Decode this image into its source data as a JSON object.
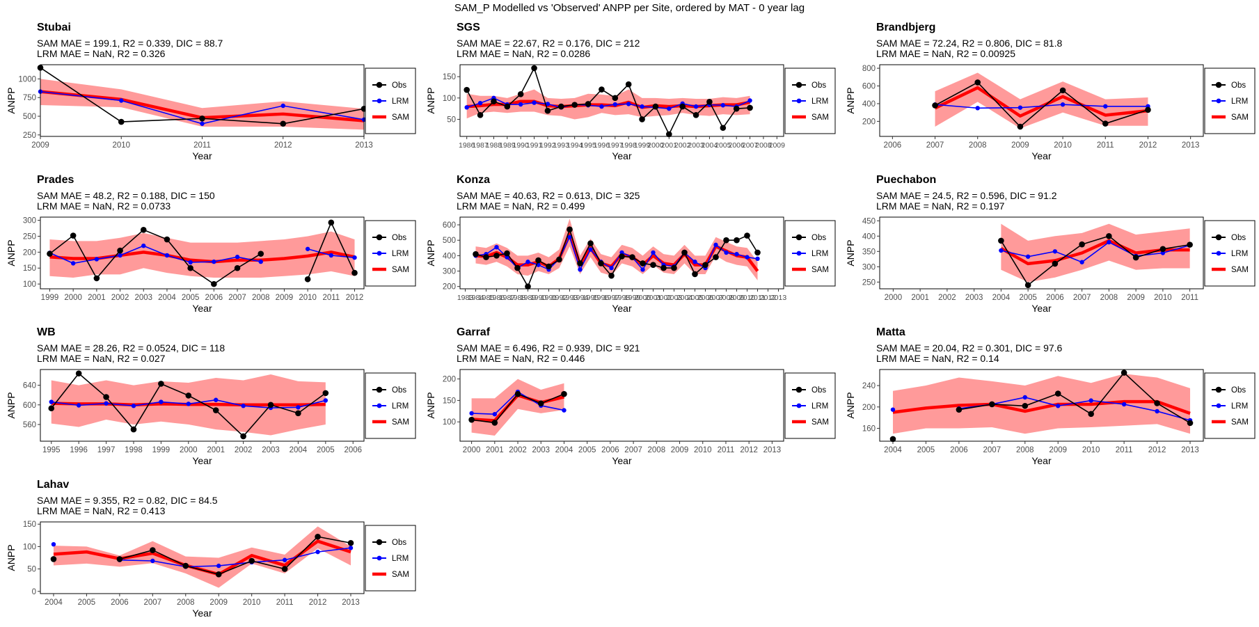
{
  "title": "SAM_P Modelled vs 'Observed' ANPP per Site, ordered by MAT - 0 year lag",
  "colors": {
    "obs": "#000000",
    "lrm": "#0000FF",
    "sam": "#FF0000",
    "band": "#FF9A9A"
  },
  "legend": [
    {
      "key": "obs",
      "label": "Obs"
    },
    {
      "key": "lrm",
      "label": "LRM"
    },
    {
      "key": "sam",
      "label": "SAM"
    }
  ],
  "chart_data": [
    {
      "type": "line",
      "title": "Stubai",
      "stats_sam": "SAM MAE = 199.1, R2 = 0.339, DIC = 88.7",
      "stats_lrm": "LRM MAE = NaN, R2 = 0.326",
      "xlabel": "Year",
      "ylabel": "ANPP",
      "xlim": [
        2009,
        2013
      ],
      "ylim": [
        230,
        1190
      ],
      "xticks": [
        2009,
        2010,
        2011,
        2012,
        2013
      ],
      "yticks": [
        250,
        500,
        750,
        1000
      ],
      "x": [
        2009,
        2010,
        2011,
        2012,
        2013
      ],
      "obs": [
        1150,
        425,
        470,
        400,
        600
      ],
      "lrm": [
        830,
        710,
        400,
        640,
        455
      ],
      "sam": [
        830,
        725,
        480,
        530,
        440
      ],
      "sam_lo": [
        650,
        620,
        360,
        360,
        320
      ],
      "sam_hi": [
        1000,
        860,
        610,
        700,
        600
      ]
    },
    {
      "type": "line",
      "title": "SGS",
      "stats_sam": "SAM MAE = 22.67, R2 = 0.176, DIC = 212",
      "stats_lrm": "LRM MAE = NaN, R2 = 0.0286",
      "xlabel": "Year",
      "ylabel": "ANPP",
      "xlim": [
        1985.5,
        2009.5
      ],
      "ylim": [
        10,
        178
      ],
      "xticks": [
        1986,
        1987,
        1988,
        1989,
        1990,
        1991,
        1992,
        1993,
        1994,
        1995,
        1996,
        1997,
        1998,
        1999,
        2000,
        2001,
        2002,
        2003,
        2004,
        2005,
        2006,
        2007,
        2008,
        2009
      ],
      "yticks": [
        50,
        100,
        150
      ],
      "x": [
        1986,
        1987,
        1988,
        1989,
        1990,
        1991,
        1992,
        1993,
        1994,
        1995,
        1996,
        1997,
        1998,
        1999,
        2000,
        2001,
        2002,
        2003,
        2004,
        2005,
        2006,
        2007
      ],
      "obs": [
        119,
        60,
        92,
        80,
        109,
        170,
        70,
        80,
        84,
        86,
        120,
        100,
        132,
        50,
        80,
        15,
        80,
        60,
        91,
        30,
        75,
        77
      ],
      "lrm": [
        78,
        88,
        100,
        85,
        85,
        89,
        86,
        78,
        85,
        83,
        80,
        85,
        86,
        80,
        78,
        75,
        87,
        80,
        84,
        83,
        80,
        94
      ],
      "sam": [
        80,
        82,
        85,
        85,
        92,
        92,
        82,
        80,
        82,
        84,
        84,
        82,
        90,
        78,
        82,
        80,
        82,
        80,
        82,
        84,
        84,
        90
      ],
      "sam_lo": [
        52,
        65,
        68,
        65,
        68,
        68,
        60,
        58,
        50,
        55,
        65,
        60,
        62,
        55,
        58,
        60,
        65,
        60,
        58,
        62,
        60,
        62
      ],
      "sam_hi": [
        110,
        105,
        105,
        100,
        110,
        120,
        100,
        98,
        100,
        110,
        108,
        105,
        120,
        100,
        100,
        98,
        100,
        98,
        98,
        102,
        100,
        105
      ]
    },
    {
      "type": "line",
      "title": "Brandbjerg",
      "stats_sam": "SAM MAE = 72.24, R2 = 0.806, DIC = 81.8",
      "stats_lrm": "LRM MAE = NaN, R2 = 0.00925",
      "xlabel": "Year",
      "ylabel": "ANPP",
      "xlim": [
        2005.7,
        2013.3
      ],
      "ylim": [
        30,
        840
      ],
      "xticks": [
        2006,
        2007,
        2008,
        2009,
        2010,
        2011,
        2012,
        2013
      ],
      "yticks": [
        200,
        400,
        600,
        800
      ],
      "x": [
        2007,
        2008,
        2009,
        2010,
        2011,
        2012
      ],
      "obs": [
        380,
        640,
        140,
        550,
        175,
        330
      ],
      "lrm": [
        390,
        350,
        355,
        390,
        370,
        370
      ],
      "sam": [
        350,
        580,
        260,
        480,
        270,
        320
      ],
      "sam_lo": [
        140,
        420,
        120,
        300,
        150,
        150
      ],
      "sam_hi": [
        540,
        750,
        450,
        650,
        450,
        470
      ]
    },
    {
      "type": "line",
      "title": "Prades",
      "stats_sam": "SAM MAE = 48.2, R2 = 0.188, DIC = 150",
      "stats_lrm": "LRM MAE = NaN, R2 = 0.0733",
      "xlabel": "Year",
      "ylabel": "ANPP",
      "xlim": [
        1998.6,
        2012.4
      ],
      "ylim": [
        85,
        310
      ],
      "xticks": [
        1999,
        2000,
        2001,
        2002,
        2003,
        2004,
        2005,
        2006,
        2007,
        2008,
        2009,
        2010,
        2011,
        2012
      ],
      "yticks": [
        100,
        150,
        200,
        250,
        300
      ],
      "x": [
        1999,
        2000,
        2001,
        2002,
        2003,
        2004,
        2005,
        2006,
        2007,
        2008,
        2009,
        2010,
        2011,
        2012
      ],
      "obs": [
        195,
        252,
        118,
        205,
        270,
        240,
        150,
        100,
        150,
        195,
        null,
        115,
        293,
        135
      ],
      "lrm": [
        198,
        165,
        178,
        190,
        220,
        190,
        168,
        170,
        185,
        170,
        null,
        210,
        190,
        183
      ],
      "sam": [
        185,
        180,
        180,
        190,
        200,
        190,
        175,
        170,
        175,
        175,
        180,
        188,
        200,
        185
      ],
      "sam_lo": [
        125,
        120,
        130,
        130,
        150,
        135,
        125,
        120,
        120,
        120,
        125,
        130,
        140,
        125
      ],
      "sam_hi": [
        240,
        235,
        235,
        245,
        260,
        245,
        230,
        230,
        230,
        235,
        240,
        250,
        265,
        240
      ]
    },
    {
      "type": "line",
      "title": "Konza",
      "stats_sam": "SAM MAE = 40.63, R2 = 0.613, DIC = 325",
      "stats_lrm": "LRM MAE = NaN, R2 = 0.499",
      "xlabel": "Year",
      "ylabel": "ANPP",
      "xlim": [
        1982.5,
        2013.5
      ],
      "ylim": [
        185,
        650
      ],
      "xticks": [
        1983,
        1984,
        1985,
        1986,
        1987,
        1988,
        1989,
        1990,
        1991,
        1992,
        1993,
        1994,
        1995,
        1996,
        1997,
        1998,
        1999,
        2000,
        2001,
        2002,
        2003,
        2004,
        2005,
        2006,
        2007,
        2008,
        2009,
        2010,
        2011,
        2012,
        2013
      ],
      "yticks": [
        200,
        300,
        400,
        500,
        600
      ],
      "x": [
        1984,
        1985,
        1986,
        1987,
        1988,
        1989,
        1990,
        1991,
        1992,
        1993,
        1994,
        1995,
        1996,
        1997,
        1998,
        1999,
        2000,
        2001,
        2002,
        2003,
        2004,
        2005,
        2006,
        2007,
        2008,
        2009,
        2010,
        2011
      ],
      "obs": [
        410,
        390,
        400,
        415,
        320,
        200,
        370,
        330,
        375,
        570,
        350,
        480,
        350,
        270,
        395,
        390,
        350,
        340,
        320,
        320,
        420,
        280,
        340,
        390,
        500,
        500,
        530,
        420
      ],
      "lrm": [
        400,
        410,
        455,
        390,
        320,
        360,
        340,
        310,
        380,
        520,
        310,
        440,
        360,
        320,
        420,
        390,
        310,
        420,
        340,
        330,
        420,
        360,
        320,
        470,
        420,
        410,
        390,
        380
      ],
      "sam": [
        400,
        395,
        420,
        390,
        340,
        340,
        360,
        330,
        380,
        540,
        340,
        450,
        350,
        330,
        410,
        390,
        340,
        400,
        350,
        340,
        410,
        340,
        340,
        460,
        430,
        400,
        390,
        300
      ],
      "sam_lo": [
        350,
        340,
        360,
        330,
        280,
        270,
        300,
        280,
        320,
        460,
        280,
        390,
        290,
        270,
        350,
        330,
        280,
        340,
        290,
        280,
        350,
        280,
        280,
        400,
        360,
        340,
        330,
        240
      ],
      "sam_hi": [
        460,
        450,
        480,
        450,
        400,
        400,
        420,
        390,
        440,
        640,
        400,
        510,
        410,
        390,
        470,
        450,
        400,
        460,
        410,
        400,
        470,
        400,
        400,
        520,
        490,
        460,
        450,
        360
      ]
    },
    {
      "type": "line",
      "title": "Puechabon",
      "stats_sam": "SAM MAE = 24.5, R2 = 0.596, DIC = 91.2",
      "stats_lrm": "LRM MAE = NaN, R2 = 0.197",
      "xlabel": "Year",
      "ylabel": "ANPP",
      "xlim": [
        1999.5,
        2011.5
      ],
      "ylim": [
        228,
        462
      ],
      "xticks": [
        2000,
        2001,
        2002,
        2003,
        2004,
        2005,
        2006,
        2007,
        2008,
        2009,
        2010,
        2011
      ],
      "yticks": [
        250,
        300,
        350,
        400,
        450
      ],
      "x": [
        2004,
        2005,
        2006,
        2007,
        2008,
        2009,
        2010,
        2011
      ],
      "obs": [
        385,
        240,
        310,
        373,
        400,
        330,
        358,
        372
      ],
      "lrm": [
        353,
        333,
        350,
        315,
        380,
        335,
        345,
        370
      ],
      "sam": [
        360,
        310,
        320,
        345,
        385,
        345,
        355,
        355
      ],
      "sam_lo": [
        290,
        250,
        265,
        290,
        320,
        290,
        295,
        295
      ],
      "sam_hi": [
        440,
        385,
        400,
        410,
        440,
        405,
        415,
        425
      ]
    },
    {
      "type": "line",
      "title": "WB",
      "stats_sam": "SAM MAE = 28.26, R2 = 0.0524, DIC = 118",
      "stats_lrm": "LRM MAE = NaN, R2 = 0.027",
      "xlabel": "Year",
      "ylabel": "ANPP",
      "xlim": [
        1994.6,
        2006.4
      ],
      "ylim": [
        526,
        672
      ],
      "xticks": [
        1995,
        1996,
        1997,
        1998,
        1999,
        2000,
        2001,
        2002,
        2003,
        2004,
        2005,
        2006
      ],
      "yticks": [
        560,
        600,
        640
      ],
      "x": [
        1995,
        1996,
        1997,
        1998,
        1999,
        2000,
        2001,
        2002,
        2003,
        2004,
        2005
      ],
      "obs": [
        593,
        664,
        616,
        550,
        643,
        619,
        589,
        536,
        600,
        583,
        624
      ],
      "lrm": [
        606,
        599,
        603,
        598,
        606,
        602,
        610,
        598,
        594,
        595,
        609
      ],
      "sam": [
        603,
        602,
        602,
        600,
        602,
        601,
        601,
        600,
        600,
        600,
        601
      ],
      "sam_lo": [
        562,
        555,
        570,
        560,
        566,
        560,
        550,
        545,
        538,
        550,
        560
      ],
      "sam_hi": [
        650,
        640,
        650,
        640,
        648,
        645,
        655,
        650,
        662,
        648,
        646
      ]
    },
    {
      "type": "line",
      "title": "Garraf",
      "stats_sam": "SAM MAE = 6.496, R2 = 0.939, DIC = 921",
      "stats_lrm": "LRM MAE = NaN, R2 = 0.446",
      "xlabel": "Year",
      "ylabel": "ANPP",
      "xlim": [
        1999.5,
        2013.5
      ],
      "ylim": [
        55,
        222
      ],
      "xticks": [
        2000,
        2001,
        2002,
        2003,
        2004,
        2005,
        2006,
        2007,
        2008,
        2009,
        2010,
        2011,
        2012,
        2013
      ],
      "yticks": [
        100,
        150,
        200
      ],
      "x": [
        2000,
        2001,
        2002,
        2003,
        2004
      ],
      "obs": [
        105,
        98,
        165,
        143,
        165
      ],
      "lrm": [
        120,
        118,
        170,
        138,
        127
      ],
      "sam": [
        106,
        103,
        162,
        145,
        158
      ],
      "sam_lo": [
        75,
        68,
        130,
        120,
        128
      ],
      "sam_hi": [
        155,
        155,
        200,
        175,
        190
      ]
    },
    {
      "type": "line",
      "title": "Matta",
      "stats_sam": "SAM MAE = 20.04, R2 = 0.301, DIC = 97.6",
      "stats_lrm": "LRM MAE = NaN, R2 = 0.14",
      "xlabel": "Year",
      "ylabel": "ANPP",
      "xlim": [
        2003.6,
        2013.4
      ],
      "ylim": [
        136,
        270
      ],
      "xticks": [
        2004,
        2005,
        2006,
        2007,
        2008,
        2009,
        2010,
        2011,
        2012,
        2013
      ],
      "yticks": [
        160,
        200,
        240
      ],
      "x": [
        2004,
        2005,
        2006,
        2007,
        2008,
        2009,
        2010,
        2011,
        2012,
        2013
      ],
      "obs": [
        140,
        null,
        195,
        205,
        202,
        225,
        187,
        264,
        207,
        170
      ],
      "lrm": [
        195,
        null,
        197,
        205,
        218,
        202,
        212,
        205,
        192,
        175
      ],
      "sam": [
        190,
        198,
        203,
        205,
        192,
        205,
        205,
        210,
        210,
        188
      ],
      "sam_lo": [
        150,
        160,
        160,
        162,
        150,
        160,
        162,
        165,
        168,
        150
      ],
      "sam_hi": [
        230,
        240,
        255,
        248,
        240,
        258,
        245,
        262,
        255,
        235
      ]
    },
    {
      "type": "line",
      "title": "Lahav",
      "stats_sam": "SAM MAE = 9.355, R2 = 0.82, DIC = 84.5",
      "stats_lrm": "LRM MAE = NaN, R2 = 0.413",
      "xlabel": "Year",
      "ylabel": "ANPP",
      "xlim": [
        2003.6,
        2013.4
      ],
      "ylim": [
        -5,
        155
      ],
      "xticks": [
        2004,
        2005,
        2006,
        2007,
        2008,
        2009,
        2010,
        2011,
        2012,
        2013
      ],
      "yticks": [
        0,
        50,
        100,
        150
      ],
      "x": [
        2004,
        2005,
        2006,
        2007,
        2008,
        2009,
        2010,
        2011,
        2012,
        2013
      ],
      "obs": [
        72,
        null,
        72,
        92,
        57,
        38,
        68,
        50,
        122,
        108
      ],
      "lrm": [
        105,
        null,
        70,
        68,
        55,
        57,
        65,
        70,
        88,
        97
      ],
      "sam": [
        83,
        88,
        73,
        85,
        58,
        38,
        80,
        58,
        112,
        88
      ],
      "sam_lo": [
        58,
        62,
        55,
        63,
        40,
        8,
        62,
        40,
        96,
        58
      ],
      "sam_hi": [
        102,
        100,
        80,
        112,
        78,
        75,
        98,
        82,
        145,
        100
      ]
    }
  ]
}
